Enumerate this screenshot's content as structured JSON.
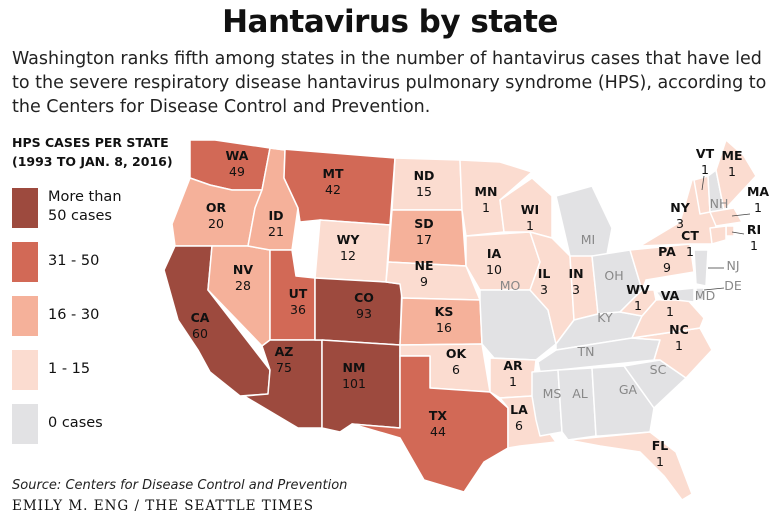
{
  "title": "Hantavirus by state",
  "subtitle_lines": [
    "Washington ranks fifth among states in the number of hantavirus cases that have led",
    "to the severe respiratory disease hantavirus pulmonary syndrome (HPS), according to",
    "the Centers for Disease Control and Prevention."
  ],
  "legend": {
    "title_lines": [
      "HPS CASES PER STATE",
      "(1993 TO  JAN. 8, 2016)"
    ],
    "items": [
      {
        "lines": [
          "More than",
          "50 cases"
        ],
        "color": "#9d4a3e"
      },
      {
        "lines": [
          "31 - 50"
        ],
        "color": "#d26956"
      },
      {
        "lines": [
          "16 - 30"
        ],
        "color": "#f5b19a"
      },
      {
        "lines": [
          "1 - 15"
        ],
        "color": "#fbdcd0"
      },
      {
        "lines": [
          "0 cases"
        ],
        "color": "#e2e2e4"
      }
    ]
  },
  "colors": {
    "gt50": "#9d4a3e",
    "31_50": "#d26956",
    "16_30": "#f5b19a",
    "1_15": "#fbdcd0",
    "zero": "#e2e2e4",
    "border": "#ffffff"
  },
  "states": [
    {
      "abbr": "WA",
      "value": "49",
      "cat": "31_50"
    },
    {
      "abbr": "OR",
      "value": "20",
      "cat": "16_30"
    },
    {
      "abbr": "CA",
      "value": "60",
      "cat": "gt50"
    },
    {
      "abbr": "NV",
      "value": "28",
      "cat": "16_30"
    },
    {
      "abbr": "ID",
      "value": "21",
      "cat": "16_30"
    },
    {
      "abbr": "MT",
      "value": "42",
      "cat": "31_50"
    },
    {
      "abbr": "WY",
      "value": "12",
      "cat": "1_15"
    },
    {
      "abbr": "UT",
      "value": "36",
      "cat": "31_50"
    },
    {
      "abbr": "AZ",
      "value": "75",
      "cat": "gt50"
    },
    {
      "abbr": "CO",
      "value": "93",
      "cat": "gt50"
    },
    {
      "abbr": "NM",
      "value": "101",
      "cat": "gt50"
    },
    {
      "abbr": "ND",
      "value": "15",
      "cat": "1_15"
    },
    {
      "abbr": "SD",
      "value": "17",
      "cat": "16_30"
    },
    {
      "abbr": "NE",
      "value": "9",
      "cat": "1_15"
    },
    {
      "abbr": "KS",
      "value": "16",
      "cat": "16_30"
    },
    {
      "abbr": "OK",
      "value": "6",
      "cat": "1_15"
    },
    {
      "abbr": "TX",
      "value": "44",
      "cat": "31_50"
    },
    {
      "abbr": "MN",
      "value": "1",
      "cat": "1_15"
    },
    {
      "abbr": "IA",
      "value": "10",
      "cat": "1_15"
    },
    {
      "abbr": "MO",
      "value": "",
      "cat": "zero"
    },
    {
      "abbr": "AR",
      "value": "1",
      "cat": "1_15"
    },
    {
      "abbr": "LA",
      "value": "6",
      "cat": "1_15"
    },
    {
      "abbr": "WI",
      "value": "1",
      "cat": "1_15"
    },
    {
      "abbr": "IL",
      "value": "3",
      "cat": "1_15"
    },
    {
      "abbr": "MI",
      "value": "",
      "cat": "zero"
    },
    {
      "abbr": "IN",
      "value": "3",
      "cat": "1_15"
    },
    {
      "abbr": "OH",
      "value": "",
      "cat": "zero"
    },
    {
      "abbr": "KY",
      "value": "",
      "cat": "zero"
    },
    {
      "abbr": "TN",
      "value": "",
      "cat": "zero"
    },
    {
      "abbr": "MS",
      "value": "",
      "cat": "zero"
    },
    {
      "abbr": "AL",
      "value": "",
      "cat": "zero"
    },
    {
      "abbr": "GA",
      "value": "",
      "cat": "zero"
    },
    {
      "abbr": "FL",
      "value": "1",
      "cat": "1_15"
    },
    {
      "abbr": "SC",
      "value": "",
      "cat": "zero"
    },
    {
      "abbr": "NC",
      "value": "1",
      "cat": "1_15"
    },
    {
      "abbr": "VA",
      "value": "1",
      "cat": "1_15"
    },
    {
      "abbr": "WV",
      "value": "1",
      "cat": "1_15"
    },
    {
      "abbr": "PA",
      "value": "9",
      "cat": "1_15"
    },
    {
      "abbr": "NY",
      "value": "3",
      "cat": "1_15"
    },
    {
      "abbr": "VT",
      "value": "1",
      "cat": "1_15"
    },
    {
      "abbr": "NH",
      "value": "",
      "cat": "zero"
    },
    {
      "abbr": "ME",
      "value": "1",
      "cat": "1_15"
    },
    {
      "abbr": "MA",
      "value": "1",
      "cat": "1_15"
    },
    {
      "abbr": "RI",
      "value": "1",
      "cat": "1_15"
    },
    {
      "abbr": "CT",
      "value": "1",
      "cat": "1_15"
    },
    {
      "abbr": "NJ",
      "value": "",
      "cat": "zero"
    },
    {
      "abbr": "DE",
      "value": "",
      "cat": "zero"
    },
    {
      "abbr": "MD",
      "value": "",
      "cat": "zero"
    }
  ],
  "source": "Source: Centers for Disease Control and Prevention",
  "credit": "EMILY M. ENG / THE SEATTLE TIMES"
}
